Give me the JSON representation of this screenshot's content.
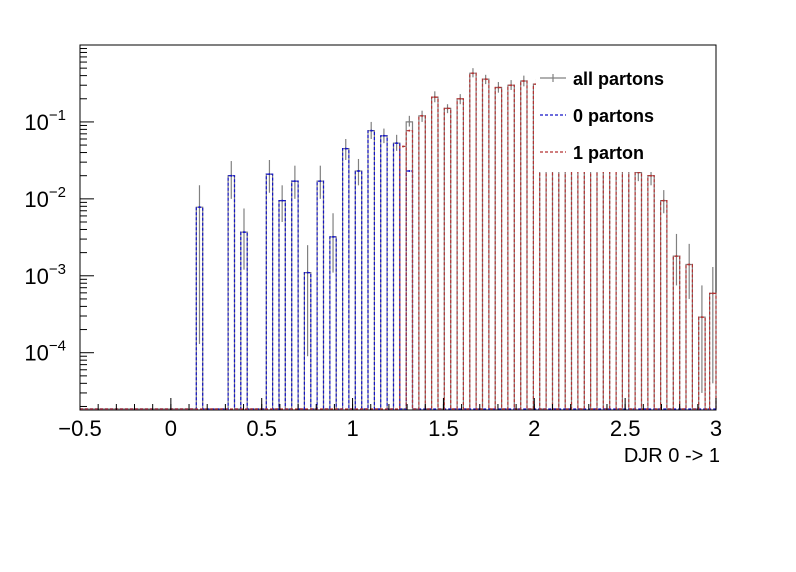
{
  "chart_data": {
    "type": "line",
    "xlabel": "DJR 0 -> 1",
    "xlim": [
      -0.5,
      3.0
    ],
    "ylim": [
      1.8e-05,
      1.0
    ],
    "y_scale": "log",
    "x_tick_labels": [
      "−0.5",
      "0",
      "0.5",
      "1",
      "1.5",
      "2",
      "2.5",
      "3"
    ],
    "x_tick_values": [
      -0.5,
      0,
      0.5,
      1,
      1.5,
      2,
      2.5,
      3
    ],
    "y_tick_values": [
      0.0001,
      0.001,
      0.01,
      0.1
    ],
    "y_tick_labels": [
      {
        "base": "10",
        "exp": "−4"
      },
      {
        "base": "10",
        "exp": "−3"
      },
      {
        "base": "10",
        "exp": "−2"
      },
      {
        "base": "10",
        "exp": "−1"
      }
    ],
    "legend": {
      "position": "top-right",
      "entries": [
        {
          "label": "all partons",
          "color": "#808080",
          "style": "solid"
        },
        {
          "label": "0 partons",
          "color": "#1414c8",
          "style": "dashed"
        },
        {
          "label": "1 parton",
          "color": "#b43232",
          "style": "dashed"
        }
      ]
    },
    "bin_width": 0.035,
    "series": [
      {
        "name": "all partons",
        "color": "#808080",
        "points": [
          {
            "x": 0.1575,
            "y": 0.0078,
            "err": [
              0.00013,
              0.015
            ]
          },
          {
            "x": 0.3325,
            "y": 0.02,
            "err": [
              0.01,
              0.031
            ]
          },
          {
            "x": 0.4025,
            "y": 0.0037,
            "err": [
              0.0012,
              0.0075
            ]
          },
          {
            "x": 0.5425,
            "y": 0.021,
            "err": [
              0.012,
              0.032
            ]
          },
          {
            "x": 0.6125,
            "y": 0.0095,
            "err": [
              0.005,
              0.015
            ]
          },
          {
            "x": 0.6825,
            "y": 0.017,
            "err": [
              0.01,
              0.027
            ]
          },
          {
            "x": 0.7525,
            "y": 0.0011,
            "err": [
              9e-05,
              0.0025
            ]
          },
          {
            "x": 0.8225,
            "y": 0.017,
            "err": [
              0.01,
              0.027
            ]
          },
          {
            "x": 0.8925,
            "y": 0.0032,
            "err": [
              0.0011,
              0.0065
            ]
          },
          {
            "x": 0.9625,
            "y": 0.045,
            "err": [
              0.032,
              0.06
            ]
          },
          {
            "x": 1.0325,
            "y": 0.023,
            "err": [
              0.015,
              0.033
            ]
          },
          {
            "x": 1.1025,
            "y": 0.077,
            "err": [
              0.06,
              0.1
            ]
          },
          {
            "x": 1.1725,
            "y": 0.066,
            "err": [
              0.053,
              0.082
            ]
          },
          {
            "x": 1.2425,
            "y": 0.053,
            "err": [
              0.042,
              0.068
            ]
          },
          {
            "x": 1.3125,
            "y": 0.1,
            "err": [
              0.087,
              0.12
            ]
          },
          {
            "x": 1.3825,
            "y": 0.12,
            "err": [
              0.1,
              0.14
            ]
          },
          {
            "x": 1.4525,
            "y": 0.21,
            "err": [
              0.18,
              0.25
            ]
          },
          {
            "x": 1.5225,
            "y": 0.15,
            "err": [
              0.13,
              0.17
            ]
          },
          {
            "x": 1.5925,
            "y": 0.2,
            "err": [
              0.17,
              0.23
            ]
          },
          {
            "x": 1.6625,
            "y": 0.43,
            "err": [
              0.38,
              0.5
            ]
          },
          {
            "x": 1.7325,
            "y": 0.36,
            "err": [
              0.31,
              0.41
            ]
          },
          {
            "x": 1.8025,
            "y": 0.28,
            "err": [
              0.24,
              0.33
            ]
          },
          {
            "x": 1.8725,
            "y": 0.3,
            "err": [
              0.26,
              0.35
            ]
          },
          {
            "x": 1.9425,
            "y": 0.34,
            "err": [
              0.29,
              0.4
            ]
          },
          {
            "x": 2.0125,
            "y": 0.31,
            "err": [
              0.27,
              0.36
            ]
          },
          {
            "x": 2.0825,
            "y": 0.3,
            "err": [
              0.26,
              0.35
            ]
          },
          {
            "x": 2.1525,
            "y": 0.2,
            "err": [
              0.17,
              0.23
            ]
          },
          {
            "x": 2.2225,
            "y": 0.15,
            "err": [
              0.13,
              0.17
            ]
          },
          {
            "x": 2.2925,
            "y": 0.1,
            "err": [
              0.085,
              0.12
            ]
          },
          {
            "x": 2.3625,
            "y": 0.07,
            "err": [
              0.058,
              0.084
            ]
          },
          {
            "x": 2.4325,
            "y": 0.045,
            "err": [
              0.036,
              0.056
            ]
          },
          {
            "x": 2.5025,
            "y": 0.033,
            "err": [
              0.026,
              0.042
            ]
          },
          {
            "x": 2.5725,
            "y": 0.022,
            "err": [
              0.017,
              0.028
            ]
          },
          {
            "x": 2.6425,
            "y": 0.02,
            "err": [
              0.015,
              0.026
            ]
          },
          {
            "x": 2.7125,
            "y": 0.0095,
            "err": [
              0.0065,
              0.013
            ]
          },
          {
            "x": 2.7825,
            "y": 0.0018,
            "err": [
              0.00075,
              0.0035
            ]
          },
          {
            "x": 2.8525,
            "y": 0.0014,
            "err": [
              0.0005,
              0.0026
            ]
          },
          {
            "x": 2.9225,
            "y": 0.00029,
            "err": [
              3e-05,
              0.00075
            ]
          },
          {
            "x": 2.9825,
            "y": 0.00059,
            "err": [
              4e-05,
              0.0013
            ]
          }
        ]
      },
      {
        "name": "0 partons",
        "color": "#1414c8",
        "points": [
          {
            "x": 0.1575,
            "y": 0.0078
          },
          {
            "x": 0.3325,
            "y": 0.02
          },
          {
            "x": 0.4025,
            "y": 0.0037
          },
          {
            "x": 0.5425,
            "y": 0.021
          },
          {
            "x": 0.6125,
            "y": 0.0095
          },
          {
            "x": 0.6825,
            "y": 0.017
          },
          {
            "x": 0.7525,
            "y": 0.0011
          },
          {
            "x": 0.8225,
            "y": 0.017
          },
          {
            "x": 0.8925,
            "y": 0.0032
          },
          {
            "x": 0.9625,
            "y": 0.045
          },
          {
            "x": 1.0325,
            "y": 0.023
          },
          {
            "x": 1.1025,
            "y": 0.077
          },
          {
            "x": 1.1725,
            "y": 0.066
          },
          {
            "x": 1.2425,
            "y": 0.053
          },
          {
            "x": 1.3125,
            "y": 0.023
          }
        ]
      },
      {
        "name": "1 parton",
        "color": "#b43232",
        "points": [
          {
            "x": 1.2775,
            "y": 0.048
          },
          {
            "x": 1.3125,
            "y": 0.077
          },
          {
            "x": 1.3825,
            "y": 0.12
          },
          {
            "x": 1.4525,
            "y": 0.21
          },
          {
            "x": 1.5225,
            "y": 0.15
          },
          {
            "x": 1.5925,
            "y": 0.2
          },
          {
            "x": 1.6625,
            "y": 0.43
          },
          {
            "x": 1.7325,
            "y": 0.36
          },
          {
            "x": 1.8025,
            "y": 0.28
          },
          {
            "x": 1.8725,
            "y": 0.3
          },
          {
            "x": 1.9425,
            "y": 0.34
          },
          {
            "x": 2.0125,
            "y": 0.31
          },
          {
            "x": 2.0825,
            "y": 0.3
          },
          {
            "x": 2.1525,
            "y": 0.2
          },
          {
            "x": 2.2225,
            "y": 0.15
          },
          {
            "x": 2.2925,
            "y": 0.1
          },
          {
            "x": 2.3625,
            "y": 0.07
          },
          {
            "x": 2.4325,
            "y": 0.045
          },
          {
            "x": 2.5025,
            "y": 0.033
          },
          {
            "x": 2.5725,
            "y": 0.022
          },
          {
            "x": 2.6425,
            "y": 0.02
          },
          {
            "x": 2.7125,
            "y": 0.0095
          },
          {
            "x": 2.7825,
            "y": 0.0018
          },
          {
            "x": 2.8525,
            "y": 0.0014
          },
          {
            "x": 2.9225,
            "y": 0.00029
          },
          {
            "x": 2.9825,
            "y": 0.00059
          }
        ]
      }
    ]
  }
}
